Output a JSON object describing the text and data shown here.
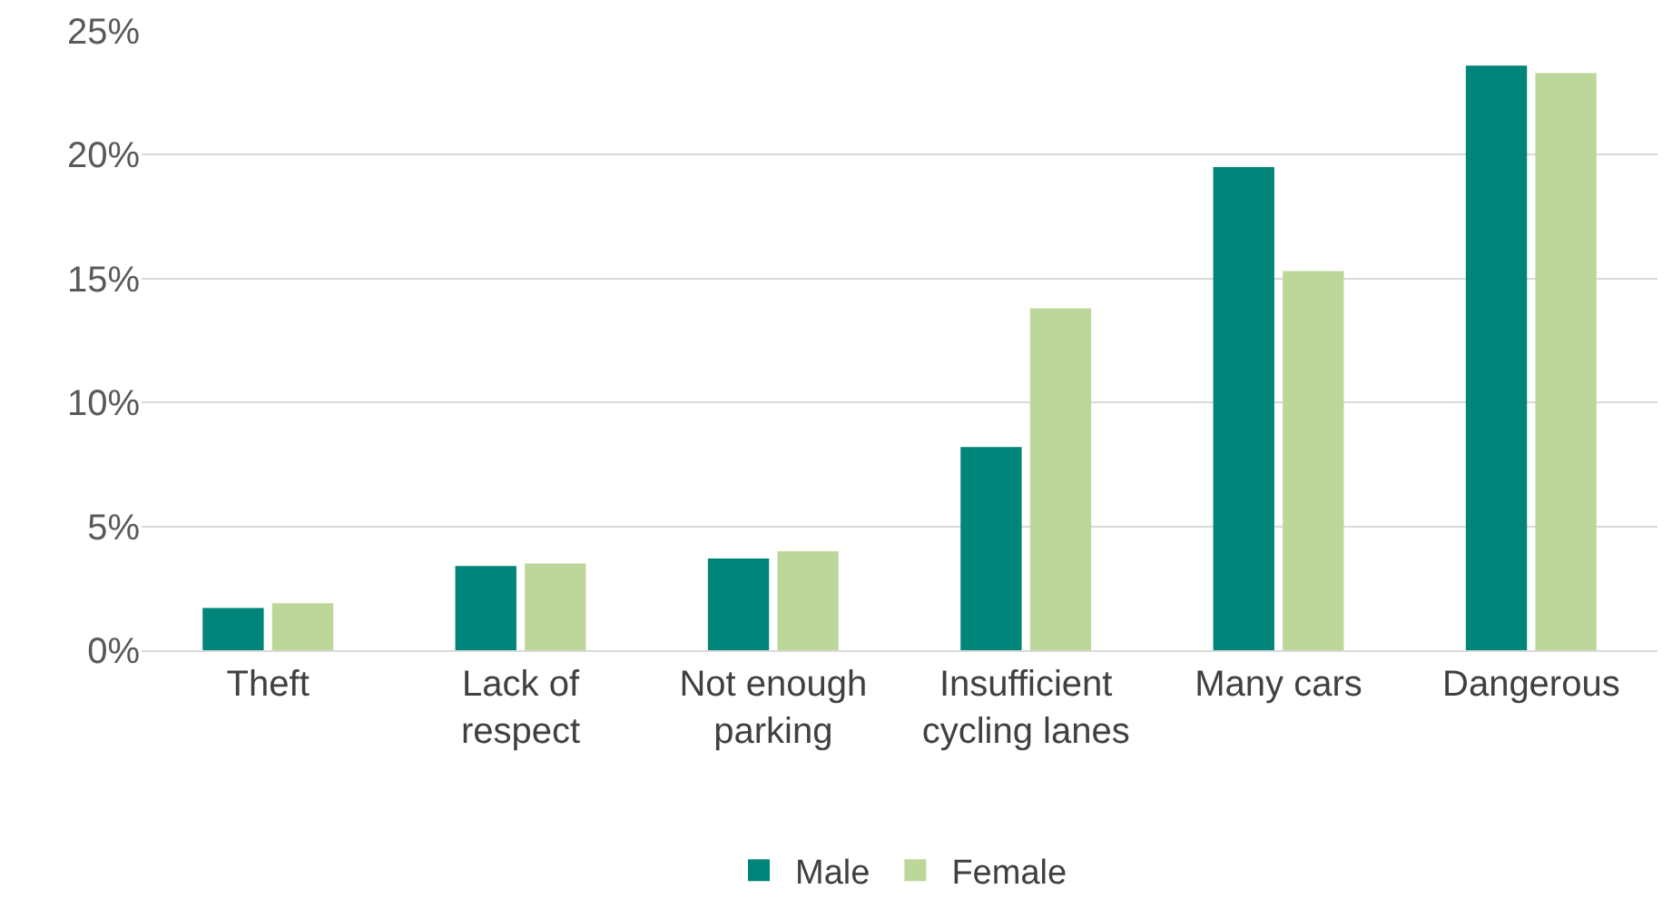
{
  "chart_data": {
    "type": "bar",
    "categories": [
      "Theft",
      "Lack of respect",
      "Not enough parking",
      "Insufficient cycling lanes",
      "Many cars",
      "Dangerous"
    ],
    "series": [
      {
        "name": "Male",
        "color": "#00857a",
        "values": [
          1.7,
          3.4,
          3.7,
          8.2,
          19.5,
          23.6
        ]
      },
      {
        "name": "Female",
        "color": "#bdd79b",
        "values": [
          1.9,
          3.5,
          4.0,
          13.8,
          15.3,
          23.3
        ]
      }
    ],
    "ylim": [
      0,
      25
    ],
    "yticks": [
      {
        "value": 0,
        "label": "0%"
      },
      {
        "value": 5,
        "label": "5%"
      },
      {
        "value": 10,
        "label": "10%"
      },
      {
        "value": 15,
        "label": "15%"
      },
      {
        "value": 20,
        "label": "20%"
      },
      {
        "value": 25,
        "label": "25%"
      }
    ],
    "grid": "y",
    "legend": "bottom"
  }
}
